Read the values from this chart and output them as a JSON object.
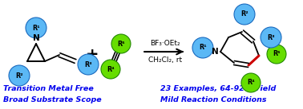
{
  "background_color": "#ffffff",
  "blue_ball_color": "#5bb8f5",
  "blue_ball_edge": "#1a6abf",
  "green_ball_color": "#66dd00",
  "green_ball_edge": "#228800",
  "text_color_blue": "#0000ee",
  "text_color_black": "#000000",
  "red_bond_color": "#cc0000",
  "arrow_color": "#000000",
  "bottom_text_left_1": "Transition Metal Free",
  "bottom_text_left_2": "Broad Substrate Scope",
  "bottom_text_right_1": "23 Examples, 64-92% Yield",
  "bottom_text_right_2": "Mild Reaction Conditions",
  "reagent_line1": "BF₃·OEt₂",
  "reagent_line2": "CH₂Cl₂, rt"
}
